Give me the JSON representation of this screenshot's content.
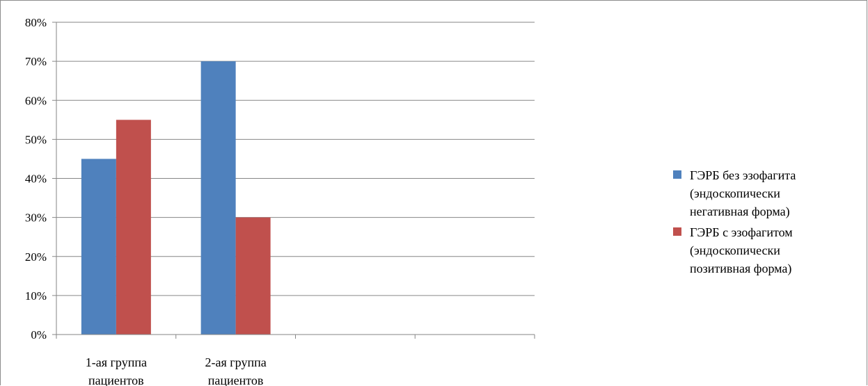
{
  "chart_data": {
    "type": "bar",
    "categories": [
      "1-ая группа\nпациентов",
      "2-ая группа\nпациентов",
      "",
      ""
    ],
    "series": [
      {
        "name": "ГЭРБ без эзофагита\n(эндоскопически\nнегативная форма)",
        "color": "#4f81bd",
        "values": [
          45,
          70,
          null,
          null
        ]
      },
      {
        "name": "ГЭРБ с эзофагитом\n(эндоскопически\nпозитивная форма)",
        "color": "#c0504d",
        "values": [
          55,
          30,
          null,
          null
        ]
      }
    ],
    "ylim": [
      0,
      80
    ],
    "yticks": [
      "0%",
      "10%",
      "20%",
      "30%",
      "40%",
      "50%",
      "60%",
      "70%",
      "80%"
    ],
    "grid": true,
    "legend_position": "right",
    "title": "",
    "xlabel": "",
    "ylabel": ""
  }
}
